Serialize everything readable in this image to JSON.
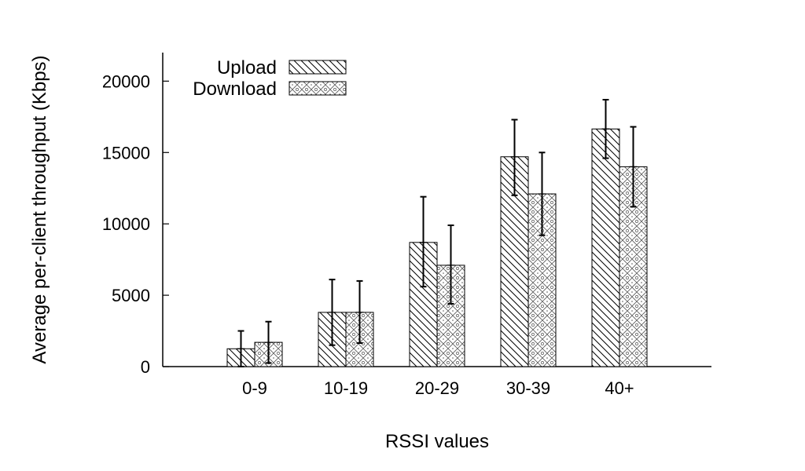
{
  "chart_data": {
    "type": "bar",
    "xlabel": "RSSI values",
    "ylabel": "Average per-client throughput (Kbps)",
    "categories": [
      "0-9",
      "10-19",
      "20-29",
      "30-39",
      "40+"
    ],
    "ylim": [
      0,
      22000
    ],
    "yticks": [
      0,
      5000,
      10000,
      15000,
      20000
    ],
    "legend_position": "top-left",
    "grid": false,
    "series": [
      {
        "name": "Upload",
        "pattern": "diagonal-hatch",
        "values": [
          1250,
          3800,
          8700,
          14700,
          16650
        ],
        "error_low": [
          0,
          1500,
          5600,
          12000,
          14600
        ],
        "error_high": [
          2500,
          6100,
          11900,
          17300,
          18700
        ]
      },
      {
        "name": "Download",
        "pattern": "dotted-crosshatch",
        "values": [
          1700,
          3800,
          7100,
          12100,
          14000
        ],
        "error_low": [
          250,
          1650,
          4400,
          9200,
          11200
        ],
        "error_high": [
          3150,
          6000,
          9900,
          15000,
          16800
        ]
      }
    ]
  }
}
